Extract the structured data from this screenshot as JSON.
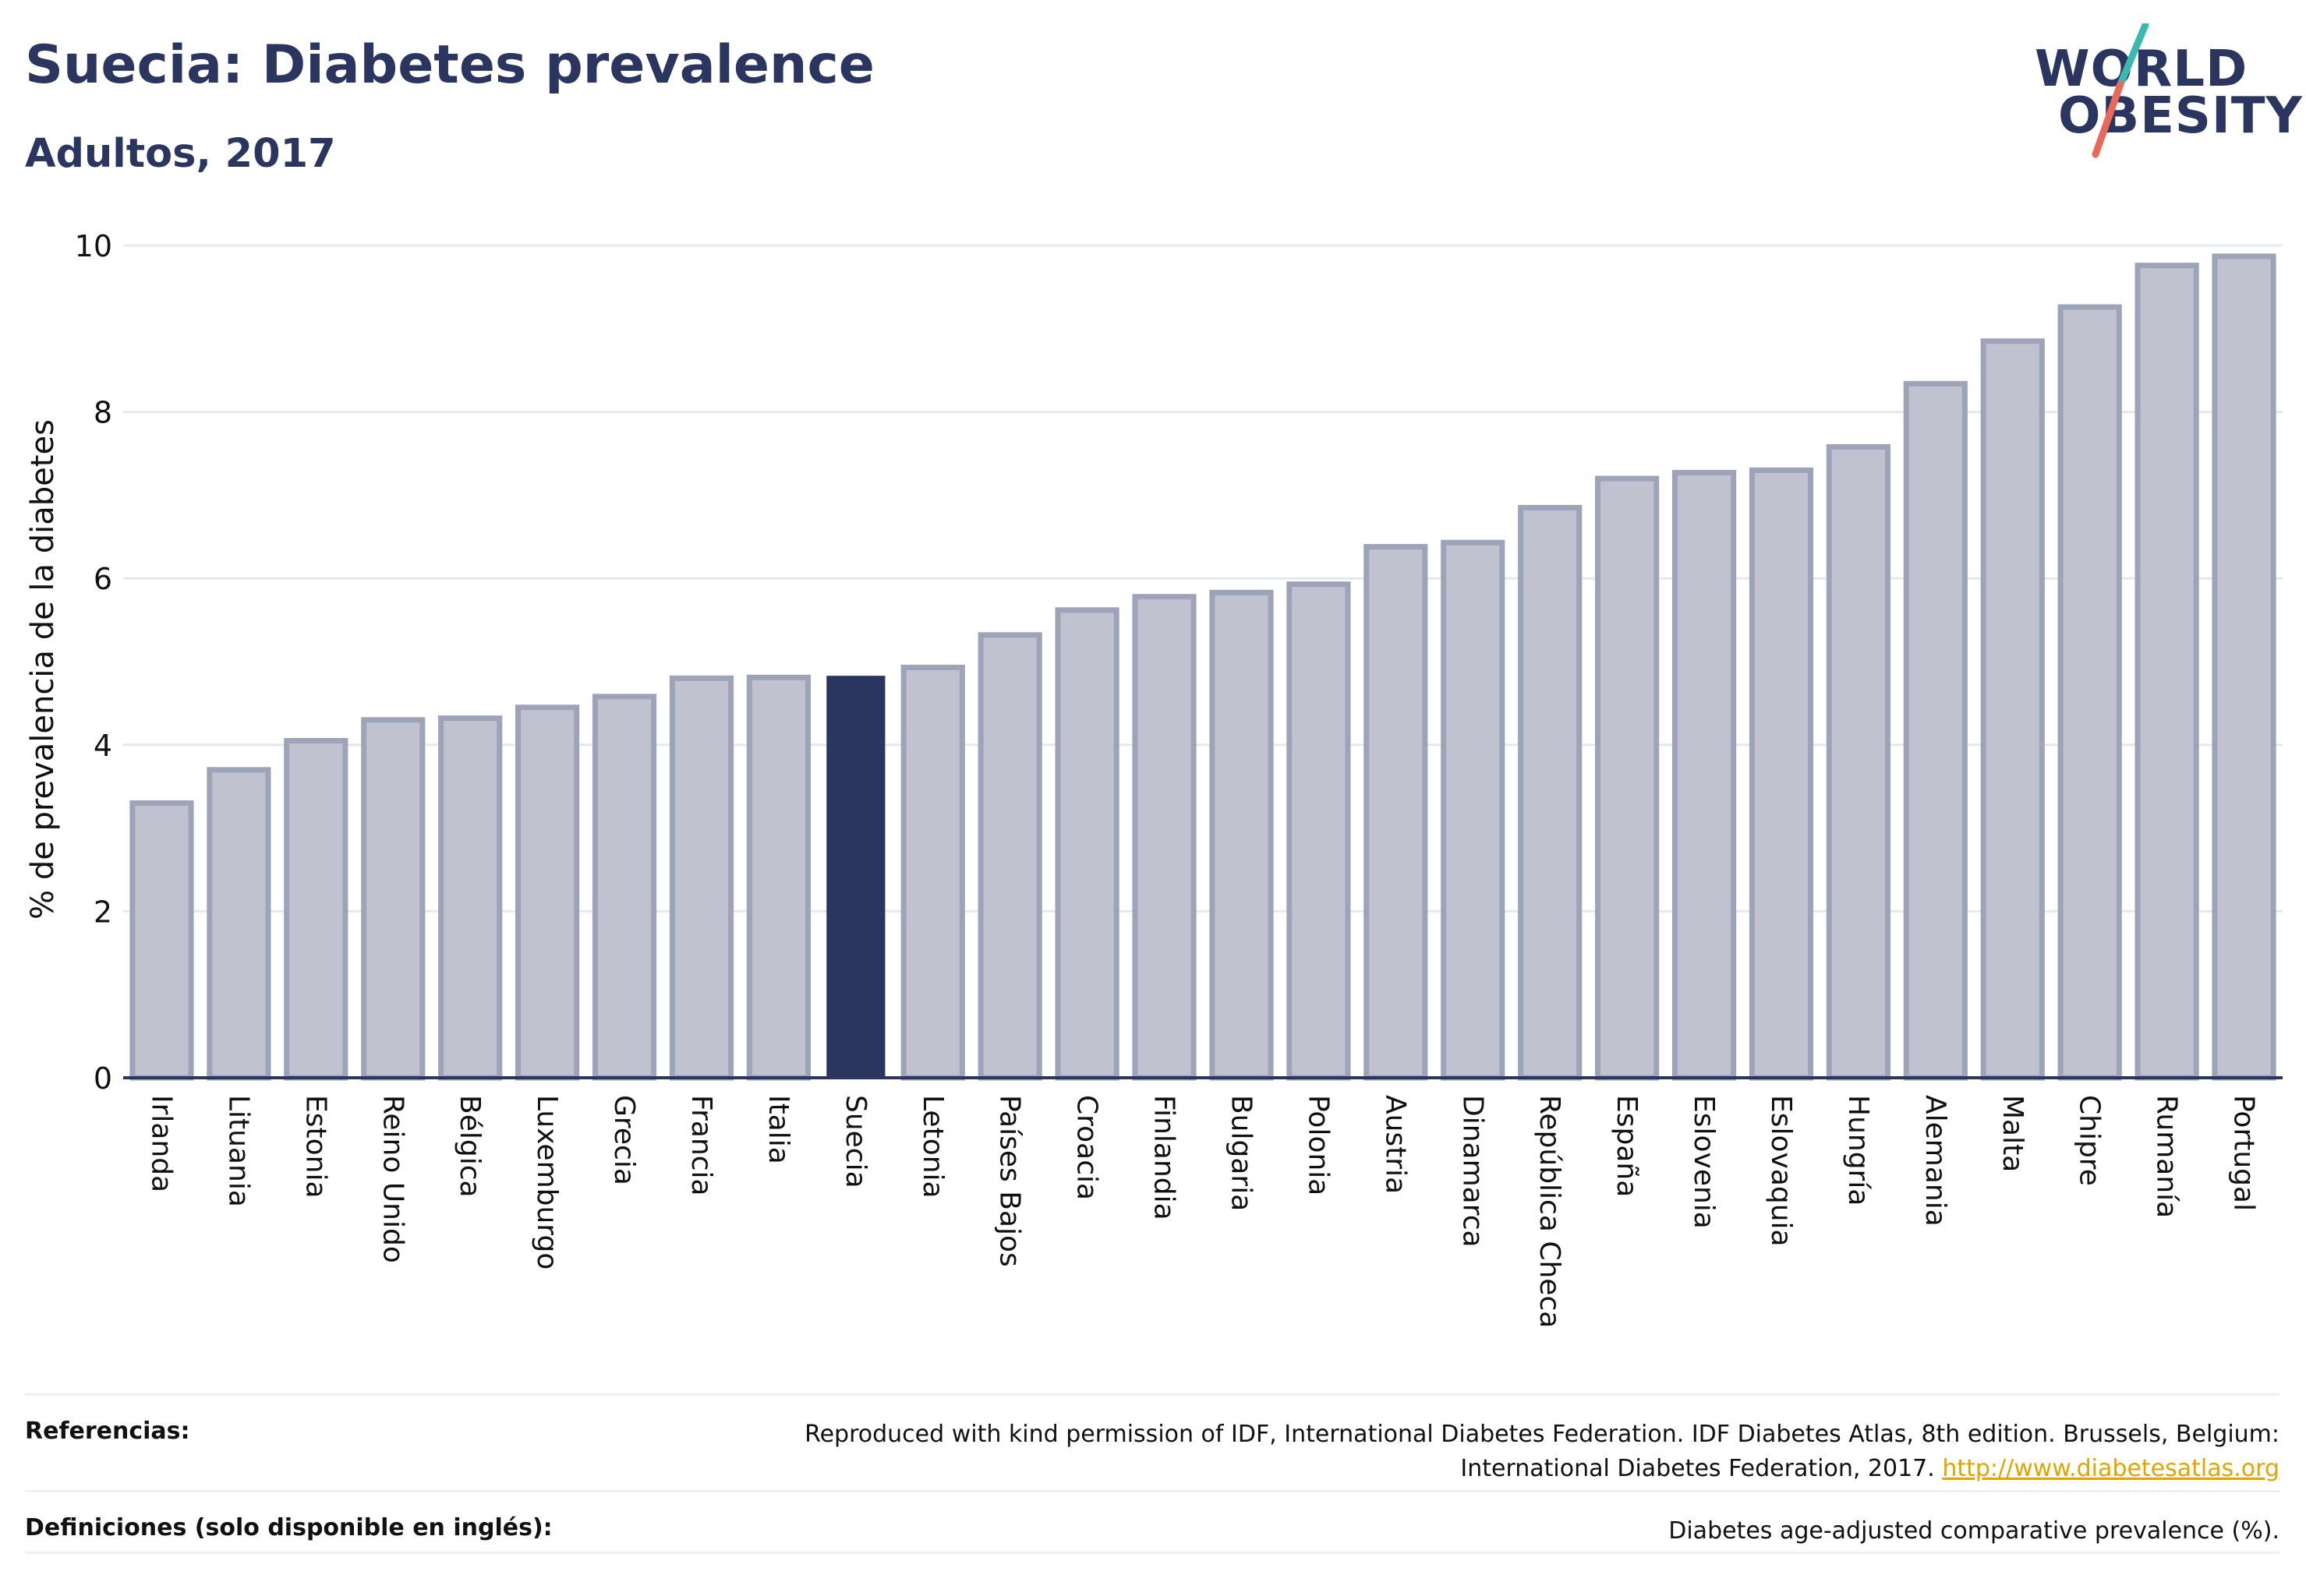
{
  "header": {
    "title": "Suecia: Diabetes prevalence",
    "subtitle": "Adultos, 2017"
  },
  "logo": {
    "line1": "WORLD",
    "line2": "OBESITY",
    "colors": {
      "text": "#2b3660",
      "slash_top": "#3ab9b0",
      "slash_bottom": "#e8685a"
    }
  },
  "colors": {
    "highlight_bar": "#2b3660",
    "other_bar_fill": "#c0c3cf",
    "other_bar_stroke": "#9da3b8",
    "gridline": "#e6e8ef",
    "link": "#e3a400"
  },
  "chart_data": {
    "type": "bar",
    "title": "",
    "xlabel": "",
    "ylabel": "% de prevalencia de la diabetes",
    "ylim": [
      0,
      10
    ],
    "yticks": [
      0,
      2,
      4,
      6,
      8,
      10
    ],
    "grid": true,
    "highlight": "Suecia",
    "categories": [
      "Irlanda",
      "Lituania",
      "Estonia",
      "Reino Unido",
      "Bélgica",
      "Luxemburgo",
      "Grecia",
      "Francia",
      "Italia",
      "Suecia",
      "Letonia",
      "Países Bajos",
      "Croacia",
      "Finlandia",
      "Bulgaria",
      "Polonia",
      "Austria",
      "Dinamarca",
      "República Checa",
      "España",
      "Eslovenia",
      "Eslovaquia",
      "Hungría",
      "Alemania",
      "Malta",
      "Chipre",
      "Rumanía",
      "Portugal"
    ],
    "values": [
      3.3,
      3.7,
      4.05,
      4.3,
      4.32,
      4.45,
      4.58,
      4.8,
      4.81,
      4.83,
      4.93,
      5.32,
      5.62,
      5.78,
      5.83,
      5.93,
      6.38,
      6.43,
      6.85,
      7.2,
      7.27,
      7.3,
      7.58,
      8.34,
      8.85,
      9.26,
      9.76,
      9.87
    ]
  },
  "footer": {
    "references_label": "Referencias:",
    "references_text_line1": "Reproduced with kind permission of IDF, International Diabetes Federation. IDF Diabetes Atlas, 8th edition. Brussels, Belgium:",
    "references_text_line2": "International Diabetes Federation, 2017.",
    "references_link": "http://www.diabetesatlas.org",
    "definitions_label": "Definiciones (solo disponible en inglés):",
    "definitions_text": "Diabetes age-adjusted comparative prevalence (%)."
  }
}
